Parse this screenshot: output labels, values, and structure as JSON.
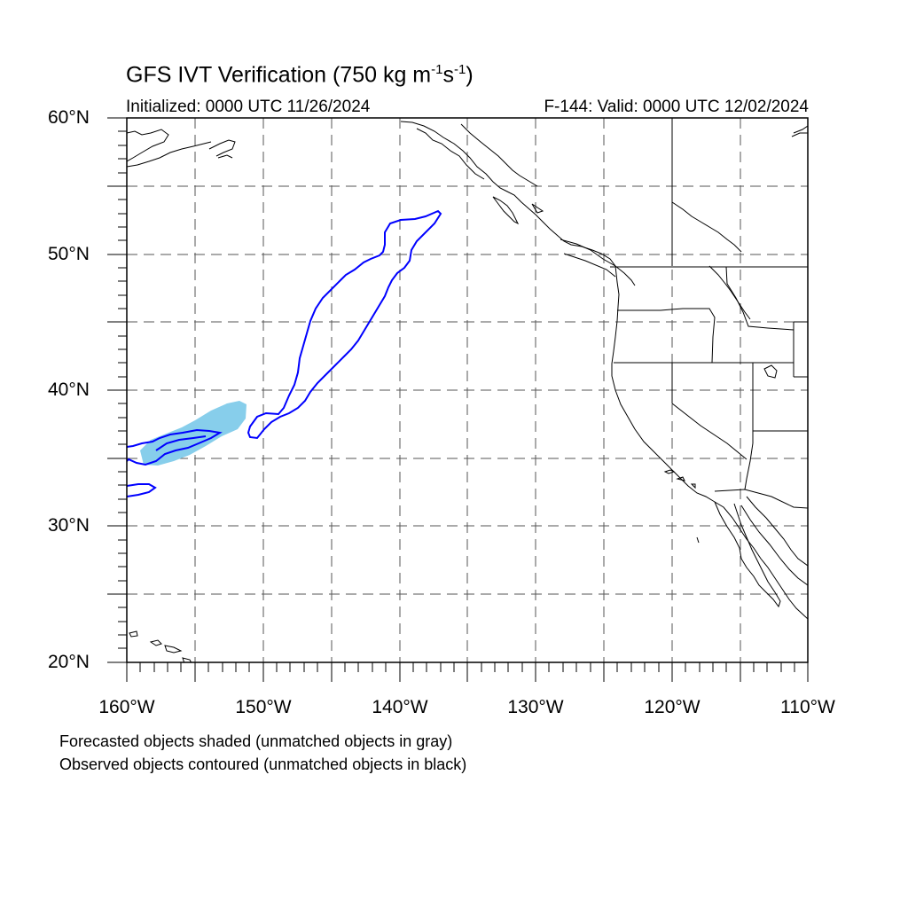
{
  "title": {
    "text": "GFS IVT Verification (750 kg m",
    "exp1": "-1",
    "mid": "s",
    "exp2": "-1",
    "close": ")"
  },
  "subtitle": {
    "initialized": "Initialized: 0000 UTC 11/26/2024",
    "valid": "F-144: Valid: 0000 UTC 12/02/2024"
  },
  "map": {
    "lat_range": [
      20,
      60
    ],
    "lon_range": [
      -160,
      -110
    ],
    "lat_labels": [
      "60°N",
      "50°N",
      "40°N",
      "30°N",
      "20°N"
    ],
    "lon_labels": [
      "160°W",
      "150°W",
      "140°W",
      "130°W",
      "120°W",
      "110°W"
    ],
    "forecast_shade_color": "#87ceeb",
    "observed_contour_color": "#0000ff"
  },
  "legend_notes": {
    "line1": "Forecasted objects shaded (unmatched objects in gray)",
    "line2": "Observed objects contoured (unmatched objects in black)"
  }
}
